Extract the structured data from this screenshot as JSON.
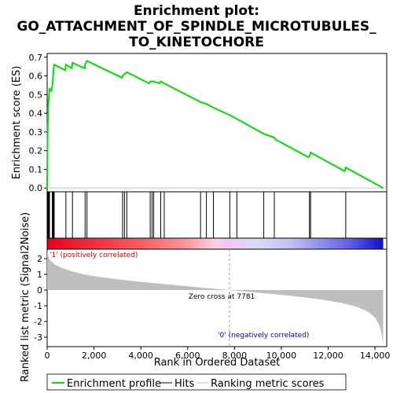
{
  "chart_data": {
    "type": "line",
    "title_lines": [
      "Enrichment plot:",
      "GO_ATTACHMENT_OF_SPINDLE_MICROTUBULES_",
      "TO_KINETOCHORE"
    ],
    "xlabel": "Rank in Ordered Dataset",
    "ylabel_top": "Enrichment score (ES)",
    "ylabel_bottom": "Ranked list metric (Signal2Noise)",
    "xlim": [
      0,
      14500
    ],
    "x_ticks": [
      0,
      2000,
      4000,
      6000,
      8000,
      10000,
      12000,
      14000
    ],
    "x_tick_labels": [
      "0",
      "2,000",
      "4,000",
      "6,000",
      "8,000",
      "10,000",
      "12,000",
      "14,000"
    ],
    "es_ylim": [
      -0.02,
      0.72
    ],
    "es_ticks": [
      0.0,
      0.1,
      0.2,
      0.3,
      0.4,
      0.5,
      0.6,
      0.7
    ],
    "es_tick_labels": [
      "0.0",
      "0.1",
      "0.2",
      "0.3",
      "0.4",
      "0.5",
      "0.6",
      "0.7"
    ],
    "metric_ylim": [
      -3.6,
      2.6
    ],
    "metric_ticks": [
      2,
      1,
      0,
      -1,
      -2,
      -3
    ],
    "metric_tick_labels": [
      "2",
      "1",
      "0",
      "-1",
      "-2",
      "-3"
    ],
    "enrichment_profile": [
      [
        0,
        0.0
      ],
      [
        20,
        0.28
      ],
      [
        40,
        0.42
      ],
      [
        60,
        0.47
      ],
      [
        80,
        0.5
      ],
      [
        100,
        0.53
      ],
      [
        180,
        0.52
      ],
      [
        220,
        0.55
      ],
      [
        240,
        0.57
      ],
      [
        260,
        0.61
      ],
      [
        280,
        0.64
      ],
      [
        300,
        0.66
      ],
      [
        780,
        0.63
      ],
      [
        800,
        0.66
      ],
      [
        1050,
        0.64
      ],
      [
        1080,
        0.67
      ],
      [
        1600,
        0.64
      ],
      [
        1620,
        0.66
      ],
      [
        1700,
        0.68
      ],
      [
        3200,
        0.59
      ],
      [
        3220,
        0.6
      ],
      [
        3300,
        0.61
      ],
      [
        3400,
        0.62
      ],
      [
        4350,
        0.56
      ],
      [
        4400,
        0.57
      ],
      [
        4480,
        0.57
      ],
      [
        4550,
        0.57
      ],
      [
        4800,
        0.56
      ],
      [
        4850,
        0.57
      ],
      [
        5000,
        0.56
      ],
      [
        6550,
        0.46
      ],
      [
        6800,
        0.45
      ],
      [
        7100,
        0.43
      ],
      [
        7800,
        0.39
      ],
      [
        8100,
        0.37
      ],
      [
        9250,
        0.29
      ],
      [
        9700,
        0.27
      ],
      [
        9750,
        0.26
      ],
      [
        11150,
        0.165
      ],
      [
        11200,
        0.17
      ],
      [
        11250,
        0.19
      ],
      [
        12700,
        0.09
      ],
      [
        12750,
        0.11
      ],
      [
        14350,
        0.0
      ]
    ],
    "hits": [
      20,
      40,
      60,
      80,
      100,
      220,
      240,
      260,
      280,
      300,
      800,
      1080,
      1620,
      1700,
      3220,
      3300,
      3400,
      4400,
      4480,
      4550,
      4850,
      5000,
      6550,
      6800,
      7100,
      7800,
      8100,
      9250,
      9700,
      11200,
      11250,
      12750
    ],
    "metric_curve": [
      [
        0,
        2.45
      ],
      [
        100,
        1.95
      ],
      [
        300,
        1.65
      ],
      [
        600,
        1.42
      ],
      [
        1000,
        1.22
      ],
      [
        1500,
        1.02
      ],
      [
        2000,
        0.88
      ],
      [
        3000,
        0.68
      ],
      [
        4000,
        0.52
      ],
      [
        5000,
        0.38
      ],
      [
        6000,
        0.24
      ],
      [
        7000,
        0.1
      ],
      [
        7781,
        0.0
      ],
      [
        8500,
        -0.1
      ],
      [
        9500,
        -0.24
      ],
      [
        10500,
        -0.38
      ],
      [
        11500,
        -0.56
      ],
      [
        12500,
        -0.8
      ],
      [
        13200,
        -1.05
      ],
      [
        13700,
        -1.38
      ],
      [
        14000,
        -1.75
      ],
      [
        14200,
        -2.3
      ],
      [
        14300,
        -2.9
      ],
      [
        14350,
        -3.4
      ]
    ],
    "zero_cross": 7781,
    "zero_cross_label": "Zero cross at 7781",
    "pos_label": "'1' (positively correlated)",
    "neg_label": "'0' (negatively correlated)",
    "legend": [
      "Enrichment profile",
      "Hits",
      "Ranking metric scores"
    ],
    "colors": {
      "profile": "#00e000",
      "hits": "#000000",
      "metric_fill": "#bebebe",
      "zero_line": "#a0a0a0",
      "pos_text": "#e00000",
      "neg_text": "#0000d0",
      "heat_stops": [
        [
          0,
          "#e8001c"
        ],
        [
          0.12,
          "#f02a3a"
        ],
        [
          0.28,
          "#f75d64"
        ],
        [
          0.42,
          "#fb9a9e"
        ],
        [
          0.5,
          "#fdd0e8"
        ],
        [
          0.54,
          "#f2c8f2"
        ],
        [
          0.62,
          "#dcdcf8"
        ],
        [
          0.72,
          "#c4c4f2"
        ],
        [
          0.82,
          "#8c8cec"
        ],
        [
          0.9,
          "#6060e6"
        ],
        [
          0.96,
          "#3030d8"
        ],
        [
          1.0,
          "#1010c0"
        ]
      ]
    }
  }
}
